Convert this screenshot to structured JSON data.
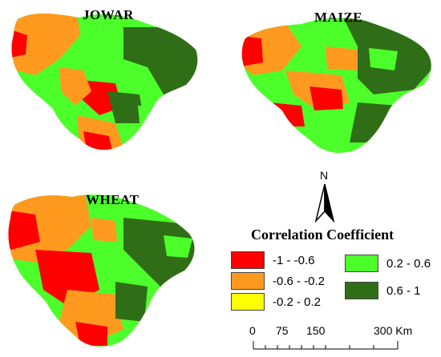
{
  "maps": [
    {
      "title": "JOWAR"
    },
    {
      "title": "MAIZE"
    },
    {
      "title": "WHEAT"
    }
  ],
  "north_arrow": {
    "label": "N"
  },
  "legend": {
    "title": "Correlation Coefficient",
    "items": [
      {
        "label": "-1 - -0.6",
        "color": "#ff0000"
      },
      {
        "label": "-0.6 - -0.2",
        "color": "#ff9a1f"
      },
      {
        "label": "-0.2 - 0.2",
        "color": "#ffff00"
      },
      {
        "label": "0.2 - 0.6",
        "color": "#4cff2a"
      },
      {
        "label": "0.6 - 1",
        "color": "#2f6e16"
      }
    ]
  },
  "scale_bar": {
    "labels": [
      "0",
      "75",
      "150",
      "300 Km"
    ]
  }
}
